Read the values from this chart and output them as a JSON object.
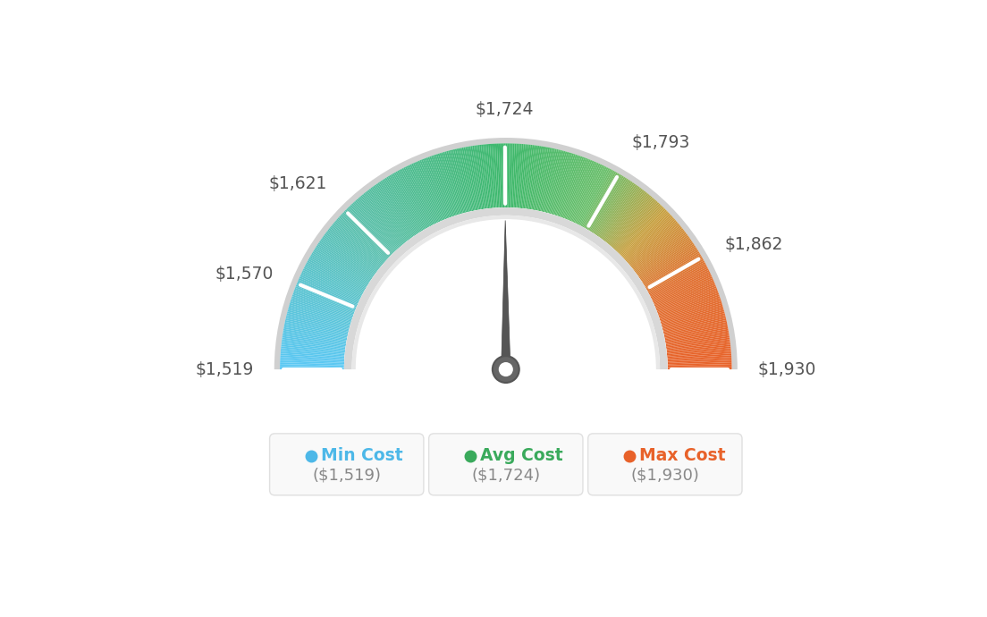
{
  "min_val": 1519,
  "max_val": 1930,
  "avg_val": 1724,
  "tick_labels": [
    "$1,519",
    "$1,570",
    "$1,621",
    "$1,724",
    "$1,793",
    "$1,862",
    "$1,930"
  ],
  "tick_values": [
    1519,
    1570,
    1621,
    1724,
    1793,
    1862,
    1930
  ],
  "legend": [
    {
      "label": "Min Cost",
      "value": "($1,519)",
      "color": "#4db8e8",
      "dot_color": "#4db8e8"
    },
    {
      "label": "Avg Cost",
      "value": "($1,724)",
      "color": "#3aaa5c",
      "dot_color": "#3aaa5c"
    },
    {
      "label": "Max Cost",
      "value": "($1,930)",
      "color": "#e8622a",
      "dot_color": "#e8622a"
    }
  ],
  "bg_color": "#ffffff",
  "color_stops": [
    [
      0.0,
      "#5bc8f5"
    ],
    [
      0.25,
      "#5abfaa"
    ],
    [
      0.5,
      "#3db86b"
    ],
    [
      0.65,
      "#6bbf6b"
    ],
    [
      0.75,
      "#c8a040"
    ],
    [
      0.85,
      "#e07030"
    ],
    [
      1.0,
      "#e8622a"
    ]
  ]
}
